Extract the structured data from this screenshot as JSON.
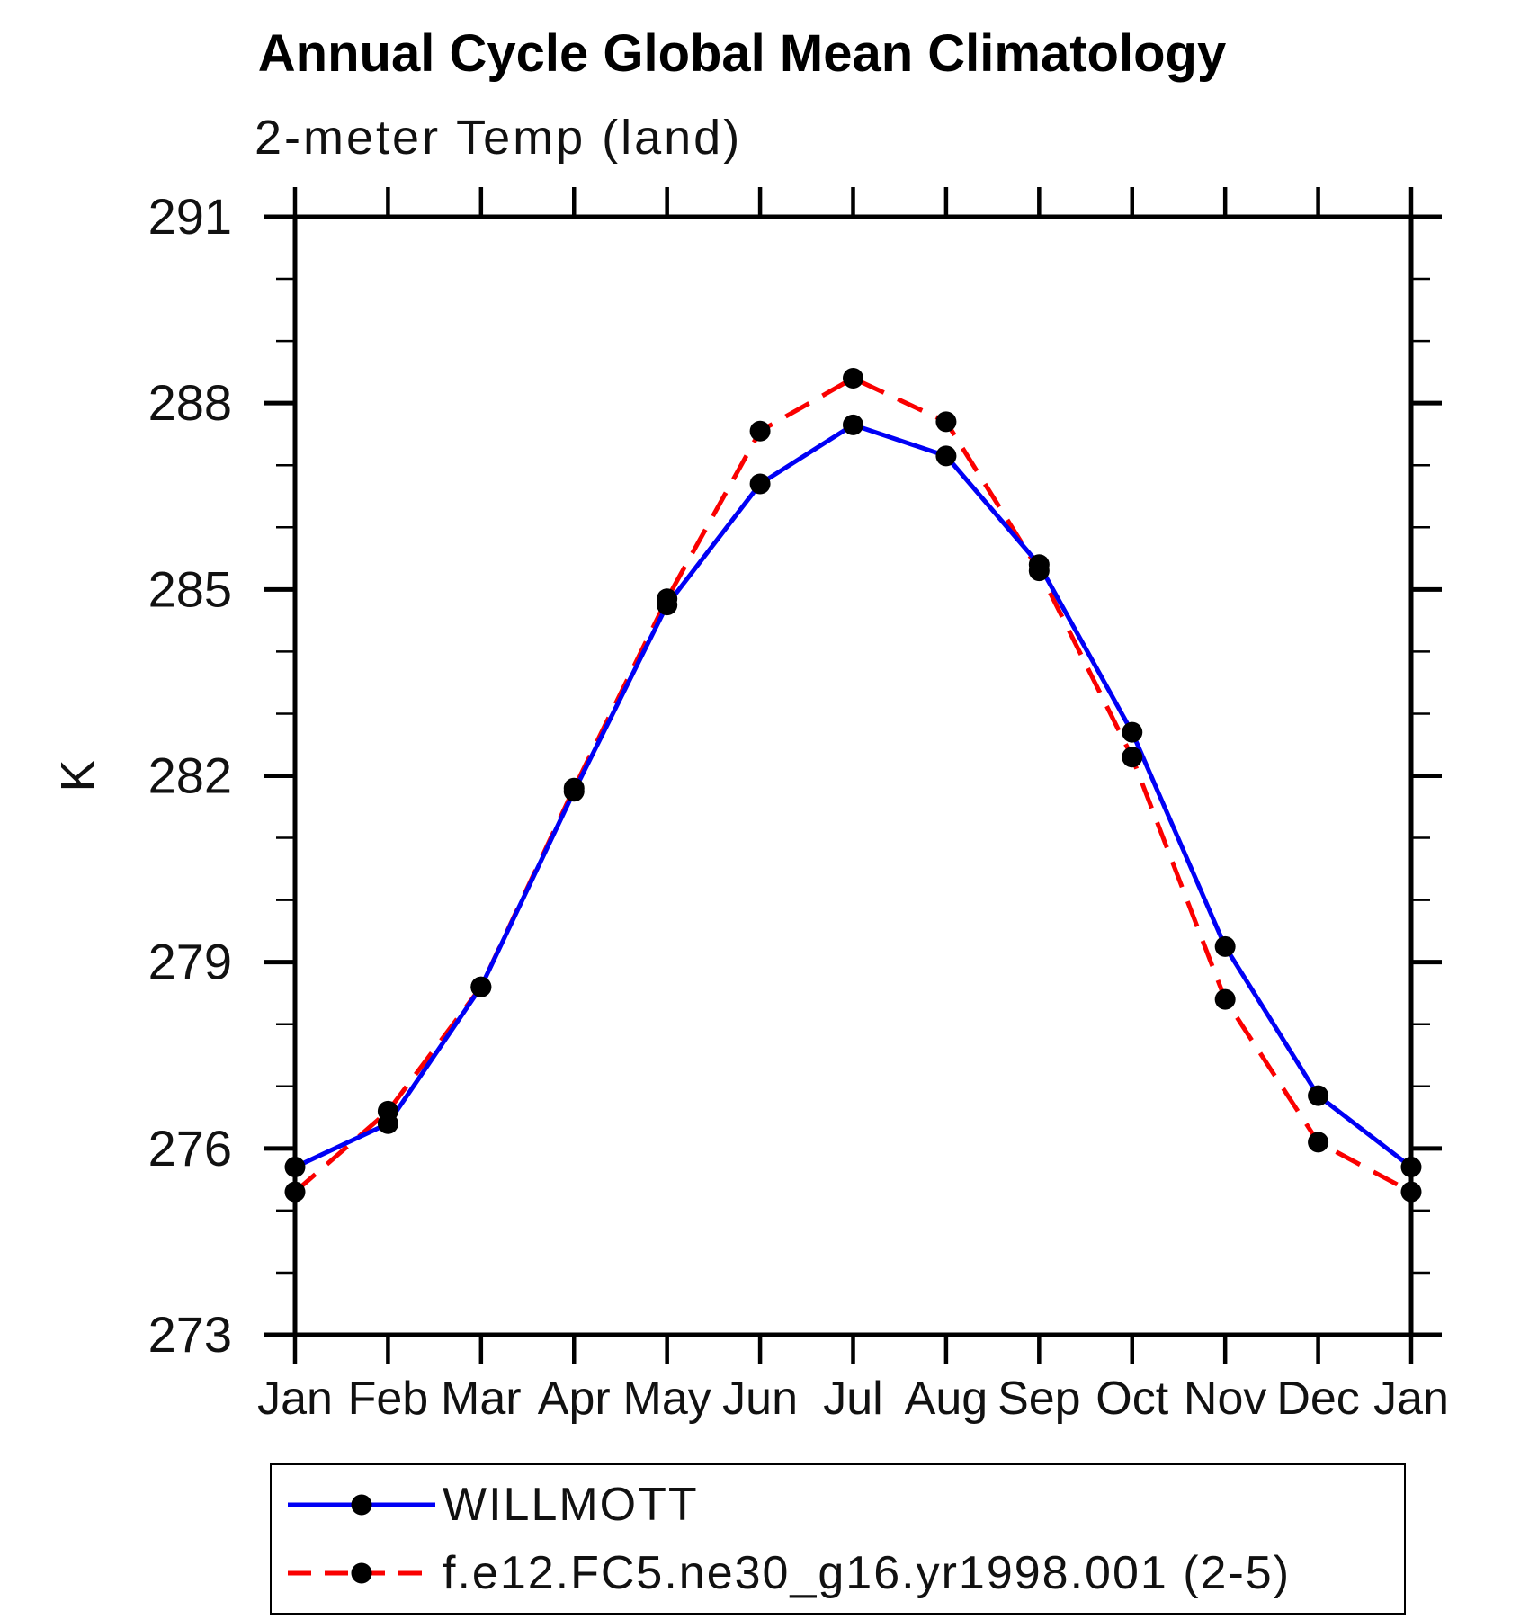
{
  "chart_data": {
    "type": "line",
    "title": "Annual Cycle Global Mean Climatology",
    "subtitle": "2-meter Temp (land)",
    "ylabel": "K",
    "xlabel": "",
    "ylim": [
      273,
      291
    ],
    "ytick_major": [
      273,
      276,
      279,
      282,
      285,
      288,
      291
    ],
    "ytick_minor_step": 1,
    "grid": false,
    "legend_position": "bottom-left",
    "categories": [
      "Jan",
      "Feb",
      "Mar",
      "Apr",
      "May",
      "Jun",
      "Jul",
      "Aug",
      "Sep",
      "Oct",
      "Nov",
      "Dec",
      "Jan"
    ],
    "series": [
      {
        "name": "WILLMOTT",
        "color": "#0000f5",
        "line": "solid",
        "marker": "circle",
        "marker_color": "#000000",
        "values": [
          275.7,
          276.4,
          278.6,
          281.75,
          284.75,
          286.7,
          287.65,
          287.15,
          285.4,
          282.7,
          279.25,
          276.85,
          275.7
        ]
      },
      {
        "name": "f.e12.FC5.ne30_g16.yr1998.001 (2-5)",
        "color": "#fa0000",
        "line": "dashed",
        "marker": "circle",
        "marker_color": "#000000",
        "values": [
          275.3,
          276.6,
          278.6,
          281.8,
          284.85,
          287.55,
          288.4,
          287.7,
          285.3,
          282.3,
          278.4,
          276.1,
          275.3
        ]
      }
    ]
  }
}
